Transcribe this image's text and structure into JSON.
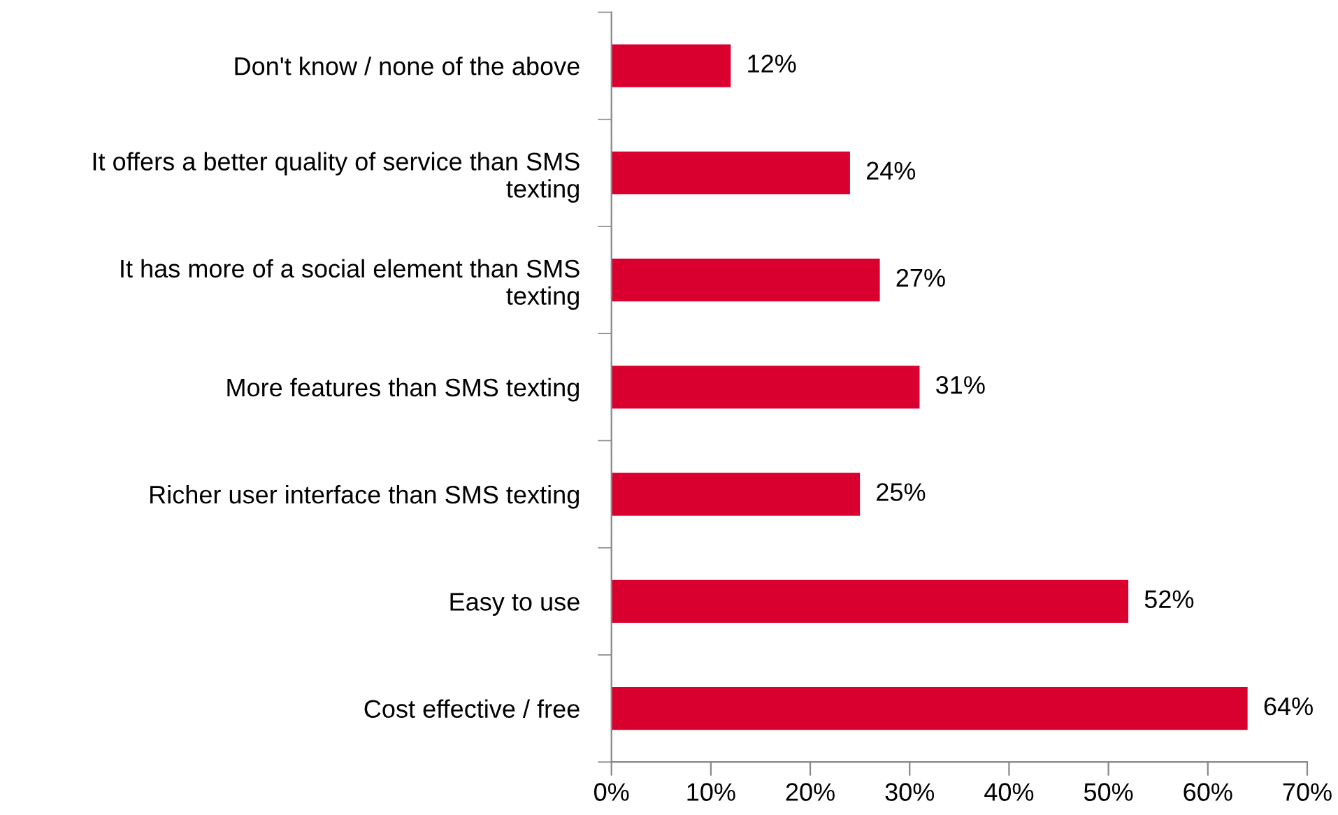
{
  "chart_data": {
    "type": "bar",
    "orientation": "horizontal",
    "categories": [
      "Don't know / none of the above",
      "It offers a better quality of service than SMS texting",
      "It has more of a social element than SMS texting",
      "More features than SMS texting",
      "Richer user interface than SMS texting",
      "Easy to use",
      "Cost effective / free"
    ],
    "values": [
      12,
      24,
      27,
      31,
      25,
      52,
      64
    ],
    "value_labels": [
      "12%",
      "24%",
      "27%",
      "31%",
      "25%",
      "52%",
      "64%"
    ],
    "color": "#d9002f",
    "xlim": [
      0,
      70
    ],
    "xticks": [
      {
        "value": 0,
        "label": "0%"
      },
      {
        "value": 10,
        "label": "10%"
      },
      {
        "value": 20,
        "label": "20%"
      },
      {
        "value": 30,
        "label": "30%"
      },
      {
        "value": 40,
        "label": "40%"
      },
      {
        "value": 50,
        "label": "50%"
      },
      {
        "value": 60,
        "label": "60%"
      },
      {
        "value": 70,
        "label": "70%"
      }
    ],
    "grid": false,
    "legend": false
  }
}
